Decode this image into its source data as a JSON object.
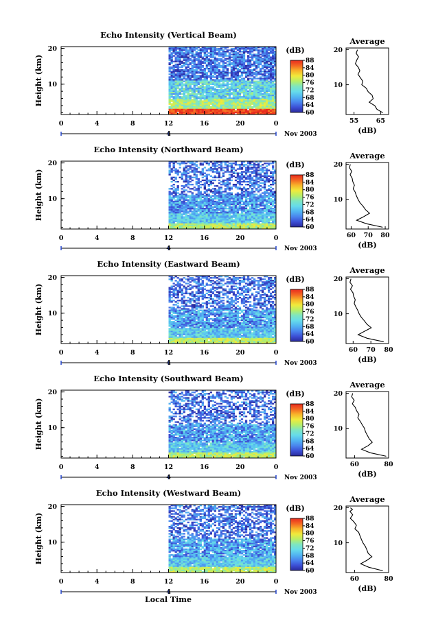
{
  "figure": {
    "bottom_xlabel": "Local Time"
  },
  "colorbar": {
    "unit_label": "(dB)",
    "ticks": [
      "88",
      "84",
      "80",
      "76",
      "72",
      "68",
      "64",
      "60"
    ],
    "range": [
      60,
      88
    ],
    "colormap": [
      "#2a2a9a",
      "#3c50d6",
      "#4a86ee",
      "#52b6f2",
      "#66dcea",
      "#7ee6c0",
      "#b8ee66",
      "#f0ea3c",
      "#f8b42a",
      "#f46622",
      "#e82b1e"
    ]
  },
  "chart_data": [
    {
      "type": "heatmap",
      "title": "Echo Intensity (Vertical Beam)",
      "ylabel": "Height (km)",
      "ylim": [
        1.5,
        20.5
      ],
      "yticks": [
        "20",
        "10"
      ],
      "xticks": [
        "0",
        "4",
        "8",
        "12",
        "16",
        "20",
        "0"
      ],
      "xlim": [
        0,
        24
      ],
      "data_start_hour": 12,
      "date_tick_label": "4",
      "date_label": "Nov 2003",
      "value_range": [
        60,
        88
      ],
      "profile": {
        "title": "Average",
        "xlabel": "(dB)",
        "xticks": [
          "55",
          "65"
        ],
        "xlim": [
          52,
          68
        ],
        "yticks": [
          "20",
          "10"
        ],
        "ylim": [
          1.5,
          20.5
        ],
        "points": [
          [
            56.3,
            20
          ],
          [
            55.8,
            19
          ],
          [
            56.7,
            18
          ],
          [
            56.0,
            17
          ],
          [
            55.5,
            16
          ],
          [
            56.6,
            15
          ],
          [
            57.2,
            14
          ],
          [
            56.5,
            13
          ],
          [
            57.4,
            12
          ],
          [
            58.3,
            11
          ],
          [
            57.9,
            10
          ],
          [
            59.6,
            9
          ],
          [
            60.3,
            8
          ],
          [
            61.8,
            7
          ],
          [
            62.2,
            6
          ],
          [
            60.7,
            5
          ],
          [
            62.8,
            4
          ],
          [
            63.6,
            3
          ],
          [
            65.8,
            2
          ]
        ]
      }
    },
    {
      "type": "heatmap",
      "title": "Echo Intensity (Northward Beam)",
      "ylabel": "Height (km)",
      "ylim": [
        1.5,
        20.5
      ],
      "yticks": [
        "20",
        "10"
      ],
      "xticks": [
        "0",
        "4",
        "8",
        "12",
        "16",
        "20",
        "0"
      ],
      "xlim": [
        0,
        24
      ],
      "data_start_hour": 12,
      "date_tick_label": "4",
      "date_label": "Nov 2003",
      "value_range": [
        60,
        88
      ],
      "profile": {
        "title": "Average",
        "xlabel": "(dB)",
        "xticks": [
          "60",
          "70",
          "80"
        ],
        "xlim": [
          57,
          82
        ],
        "yticks": [
          "20",
          "10"
        ],
        "ylim": [
          1.5,
          20.5
        ],
        "points": [
          [
            59.5,
            20
          ],
          [
            59.0,
            19
          ],
          [
            60.3,
            18
          ],
          [
            59.4,
            17
          ],
          [
            60.6,
            16
          ],
          [
            61.0,
            15
          ],
          [
            61.9,
            14
          ],
          [
            61.2,
            13
          ],
          [
            62.4,
            12
          ],
          [
            63.1,
            11
          ],
          [
            64.0,
            10
          ],
          [
            65.2,
            9
          ],
          [
            67.0,
            8
          ],
          [
            68.5,
            7
          ],
          [
            70.8,
            6
          ],
          [
            67.3,
            5
          ],
          [
            63.2,
            4
          ],
          [
            69.0,
            3
          ],
          [
            78.5,
            2
          ]
        ]
      }
    },
    {
      "type": "heatmap",
      "title": "Echo Intensity (Eastward Beam)",
      "ylabel": "Height (km)",
      "ylim": [
        1.5,
        20.5
      ],
      "yticks": [
        "20",
        "10"
      ],
      "xticks": [
        "0",
        "4",
        "8",
        "12",
        "16",
        "20",
        "0"
      ],
      "xlim": [
        0,
        24
      ],
      "data_start_hour": 12,
      "date_tick_label": "4",
      "date_label": "Nov 2003",
      "value_range": [
        60,
        88
      ],
      "profile": {
        "title": "Average",
        "xlabel": "(dB)",
        "xticks": [
          "60",
          "70",
          "80"
        ],
        "xlim": [
          56,
          80
        ],
        "yticks": [
          "20",
          "10"
        ],
        "ylim": [
          1.5,
          20.5
        ],
        "points": [
          [
            58.8,
            20
          ],
          [
            58.2,
            19
          ],
          [
            59.6,
            18
          ],
          [
            58.5,
            17
          ],
          [
            59.9,
            16
          ],
          [
            60.3,
            15
          ],
          [
            61.2,
            14
          ],
          [
            60.6,
            13
          ],
          [
            61.5,
            12
          ],
          [
            62.6,
            11
          ],
          [
            63.4,
            10
          ],
          [
            64.6,
            9
          ],
          [
            66.3,
            8
          ],
          [
            67.8,
            7
          ],
          [
            70.2,
            6
          ],
          [
            66.4,
            5
          ],
          [
            62.8,
            4
          ],
          [
            67.9,
            3
          ],
          [
            77.2,
            2
          ]
        ]
      }
    },
    {
      "type": "heatmap",
      "title": "Echo Intensity (Southward Beam)",
      "ylabel": "Height (km)",
      "ylim": [
        1.5,
        20.5
      ],
      "yticks": [
        "20",
        "10"
      ],
      "xticks": [
        "0",
        "4",
        "8",
        "12",
        "16",
        "20",
        "0"
      ],
      "xlim": [
        0,
        24
      ],
      "data_start_hour": 12,
      "date_tick_label": "4",
      "date_label": "Nov 2003",
      "value_range": [
        60,
        88
      ],
      "profile": {
        "title": "Average",
        "xlabel": "(dB)",
        "xticks": [
          "60",
          "80"
        ],
        "xlim": [
          55,
          80
        ],
        "yticks": [
          "20",
          "10"
        ],
        "ylim": [
          1.5,
          20.5
        ],
        "points": [
          [
            58.9,
            20
          ],
          [
            58.3,
            19
          ],
          [
            59.8,
            18
          ],
          [
            58.7,
            17
          ],
          [
            60.4,
            16
          ],
          [
            61.2,
            15
          ],
          [
            62.6,
            14
          ],
          [
            61.9,
            13
          ],
          [
            63.3,
            12
          ],
          [
            64.5,
            11
          ],
          [
            65.8,
            10
          ],
          [
            66.4,
            9
          ],
          [
            67.5,
            8
          ],
          [
            68.6,
            7
          ],
          [
            70.4,
            6
          ],
          [
            67.9,
            5
          ],
          [
            64.1,
            4
          ],
          [
            69.2,
            3
          ],
          [
            78.6,
            2
          ]
        ]
      }
    },
    {
      "type": "heatmap",
      "title": "Echo Intensity (Westward Beam)",
      "ylabel": "Height (km)",
      "ylim": [
        1.5,
        20.5
      ],
      "yticks": [
        "20",
        "10"
      ],
      "xticks": [
        "0",
        "4",
        "8",
        "12",
        "16",
        "20",
        "0"
      ],
      "xlim": [
        0,
        24
      ],
      "data_start_hour": 12,
      "date_tick_label": "4",
      "date_label": "Nov 2003",
      "value_range": [
        60,
        88
      ],
      "profile": {
        "title": "Average",
        "xlabel": "(dB)",
        "xticks": [
          "60",
          "80"
        ],
        "xlim": [
          55,
          80
        ],
        "yticks": [
          "20",
          "10"
        ],
        "ylim": [
          1.5,
          20.5
        ],
        "points": [
          [
            57.6,
            20
          ],
          [
            58.8,
            19.5
          ],
          [
            57.3,
            19
          ],
          [
            58.9,
            18
          ],
          [
            57.5,
            17
          ],
          [
            59.6,
            16
          ],
          [
            61.1,
            15
          ],
          [
            60.2,
            14
          ],
          [
            62.4,
            13
          ],
          [
            63.2,
            12
          ],
          [
            64.0,
            11
          ],
          [
            64.9,
            10
          ],
          [
            66.3,
            9
          ],
          [
            67.2,
            8
          ],
          [
            68.0,
            7
          ],
          [
            70.2,
            6
          ],
          [
            67.3,
            5
          ],
          [
            63.6,
            4
          ],
          [
            68.4,
            3
          ],
          [
            76.6,
            2
          ]
        ]
      }
    }
  ]
}
